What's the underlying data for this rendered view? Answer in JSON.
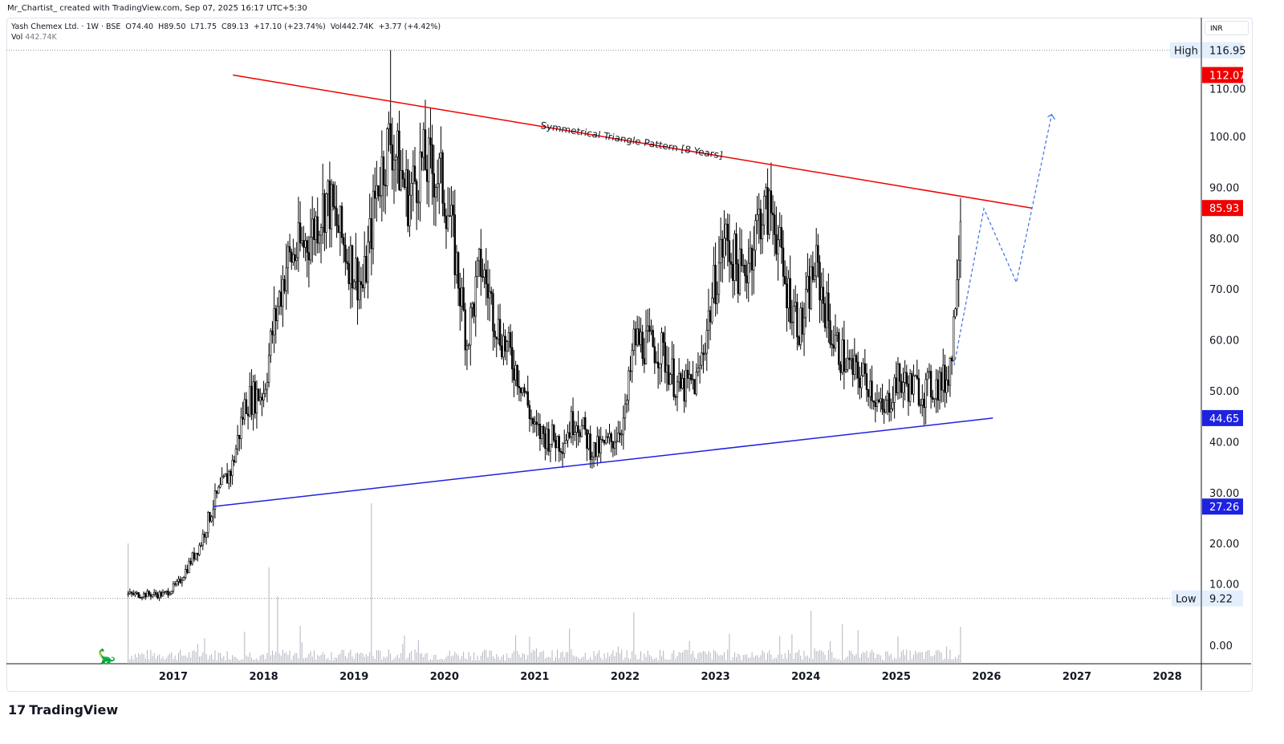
{
  "credit": "Mr_Chartist_ created with TradingView.com, Sep 07, 2025 16:17 UTC+5:30",
  "legend": {
    "line": "Yash Chemex Ltd. · 1W · BSE  O74.40  H89.50  L71.75  C89.13  +17.10 (+23.74%)  Vol442.74K  +3.77 (+4.42%)",
    "vol_label": "Vol",
    "vol_value": "442.74K"
  },
  "currency": "INR",
  "brand": "TradingView",
  "chart_data": {
    "type": "candlestick",
    "title": "Yash Chemex Ltd. · 1W · BSE",
    "ylim": [
      0,
      117
    ],
    "y_ticks": [
      "0.00",
      "10.00",
      "20.00",
      "30.00",
      "40.00",
      "50.00",
      "60.00",
      "70.00",
      "80.00",
      "90.00",
      "100.00",
      "110.00"
    ],
    "x_ticks": [
      "2017",
      "2018",
      "2019",
      "2020",
      "2021",
      "2022",
      "2023",
      "2024",
      "2025",
      "2026",
      "2027",
      "2028"
    ],
    "price_path": [
      [
        2016.5,
        10
      ],
      [
        2016.9,
        10
      ],
      [
        2017.05,
        12
      ],
      [
        2017.3,
        20
      ],
      [
        2017.45,
        28
      ],
      [
        2017.65,
        35
      ],
      [
        2017.8,
        48
      ],
      [
        2018.0,
        50
      ],
      [
        2018.1,
        62
      ],
      [
        2018.25,
        75
      ],
      [
        2018.5,
        80
      ],
      [
        2018.7,
        88
      ],
      [
        2018.9,
        78
      ],
      [
        2019.1,
        70
      ],
      [
        2019.25,
        90
      ],
      [
        2019.4,
        100
      ],
      [
        2019.6,
        88
      ],
      [
        2019.75,
        95
      ],
      [
        2019.95,
        92
      ],
      [
        2020.05,
        85
      ],
      [
        2020.25,
        60
      ],
      [
        2020.4,
        75
      ],
      [
        2020.6,
        62
      ],
      [
        2020.85,
        52
      ],
      [
        2021.0,
        42
      ],
      [
        2021.3,
        40
      ],
      [
        2021.45,
        45
      ],
      [
        2021.65,
        38
      ],
      [
        2021.85,
        40
      ],
      [
        2022.0,
        45
      ],
      [
        2022.1,
        60
      ],
      [
        2022.4,
        58
      ],
      [
        2022.6,
        50
      ],
      [
        2022.8,
        52
      ],
      [
        2023.0,
        72
      ],
      [
        2023.1,
        80
      ],
      [
        2023.3,
        72
      ],
      [
        2023.5,
        85
      ],
      [
        2023.65,
        85
      ],
      [
        2023.75,
        72
      ],
      [
        2023.95,
        62
      ],
      [
        2024.1,
        75
      ],
      [
        2024.3,
        60
      ],
      [
        2024.5,
        54
      ],
      [
        2024.7,
        52
      ],
      [
        2024.85,
        45
      ],
      [
        2025.0,
        52
      ],
      [
        2025.3,
        50
      ],
      [
        2025.55,
        52
      ],
      [
        2025.62,
        58
      ],
      [
        2025.67,
        75
      ],
      [
        2025.72,
        89
      ]
    ],
    "high": {
      "label": "High",
      "value": "116.95",
      "date": 2019.4,
      "color": "#e3effd"
    },
    "low": {
      "label": "Low",
      "value": "9.22",
      "date": 2016.5
    },
    "resistance": {
      "from": [
        2017.66,
        112.07
      ],
      "to": [
        2026.5,
        85.93
      ],
      "color": "#f00000",
      "labels": [
        "112.07",
        "85.93"
      ]
    },
    "support": {
      "from": [
        2017.44,
        27.26
      ],
      "to": [
        2026.07,
        44.65
      ],
      "color": "#1e22e0",
      "labels": [
        "27.26",
        "44.65"
      ]
    },
    "projection": [
      [
        2025.64,
        55
      ],
      [
        2025.97,
        85.8
      ],
      [
        2026.33,
        71.3
      ],
      [
        2026.72,
        104.3
      ]
    ],
    "projection_color": "#3d6ee8",
    "annotation": "Symmetrical Triangle Pattern [8 Years]",
    "volume_spikes": [
      [
        2016.5,
        0.75
      ],
      [
        2018.05,
        0.6
      ],
      [
        2018.15,
        0.42
      ],
      [
        2019.2,
        1.0
      ],
      [
        2022.1,
        0.32
      ],
      [
        2024.05,
        0.33
      ],
      [
        2025.72,
        0.23
      ]
    ]
  }
}
